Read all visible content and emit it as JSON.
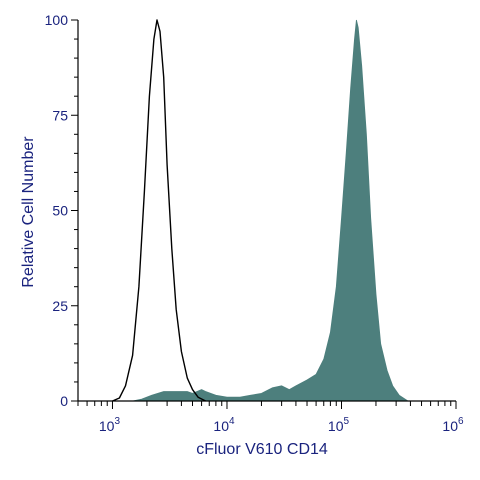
{
  "chart_data": {
    "type": "area",
    "title": "",
    "xlabel": "cFluor V610 CD14",
    "ylabel": "Relative Cell Number",
    "x_scale": "log",
    "xlim": [
      500,
      1000000
    ],
    "ylim": [
      0,
      100
    ],
    "x_major_ticks": [
      {
        "value": 1000,
        "base": "10",
        "exp": "3"
      },
      {
        "value": 10000,
        "base": "10",
        "exp": "4"
      },
      {
        "value": 100000,
        "base": "10",
        "exp": "5"
      },
      {
        "value": 1000000,
        "base": "10",
        "exp": "6"
      }
    ],
    "y_ticks": [
      {
        "value": 0,
        "label": "0"
      },
      {
        "value": 25,
        "label": "25"
      },
      {
        "value": 50,
        "label": "50"
      },
      {
        "value": 75,
        "label": "75"
      },
      {
        "value": 100,
        "label": "100"
      }
    ],
    "grid": false,
    "series": [
      {
        "style": "outline",
        "color": "#000000",
        "points": [
          [
            1000,
            0
          ],
          [
            1150,
            0.8
          ],
          [
            1300,
            4
          ],
          [
            1500,
            12
          ],
          [
            1700,
            30
          ],
          [
            1900,
            55
          ],
          [
            2100,
            80
          ],
          [
            2300,
            95
          ],
          [
            2450,
            100
          ],
          [
            2600,
            97
          ],
          [
            2800,
            85
          ],
          [
            3000,
            62
          ],
          [
            3300,
            40
          ],
          [
            3600,
            24
          ],
          [
            4000,
            13
          ],
          [
            4500,
            6
          ],
          [
            5000,
            3
          ],
          [
            5600,
            1
          ],
          [
            6500,
            0
          ]
        ]
      },
      {
        "style": "filled",
        "color": "#4d7f7d",
        "points": [
          [
            1500,
            0
          ],
          [
            1800,
            0.5
          ],
          [
            2200,
            1.5
          ],
          [
            2800,
            2.5
          ],
          [
            3500,
            2.5
          ],
          [
            4500,
            2.5
          ],
          [
            5000,
            2
          ],
          [
            6000,
            3
          ],
          [
            6500,
            2.5
          ],
          [
            8000,
            1.5
          ],
          [
            10000,
            1
          ],
          [
            13000,
            1
          ],
          [
            16000,
            1.5
          ],
          [
            20000,
            2
          ],
          [
            25000,
            3.5
          ],
          [
            30000,
            4
          ],
          [
            35000,
            3
          ],
          [
            40000,
            4
          ],
          [
            50000,
            5.5
          ],
          [
            60000,
            7
          ],
          [
            70000,
            11
          ],
          [
            80000,
            18
          ],
          [
            90000,
            30
          ],
          [
            100000,
            48
          ],
          [
            110000,
            65
          ],
          [
            120000,
            82
          ],
          [
            130000,
            95
          ],
          [
            135000,
            100
          ],
          [
            140000,
            98
          ],
          [
            150000,
            88
          ],
          [
            165000,
            70
          ],
          [
            180000,
            48
          ],
          [
            200000,
            28
          ],
          [
            220000,
            15
          ],
          [
            250000,
            8
          ],
          [
            280000,
            4
          ],
          [
            320000,
            1.5
          ],
          [
            380000,
            0
          ]
        ]
      }
    ]
  }
}
